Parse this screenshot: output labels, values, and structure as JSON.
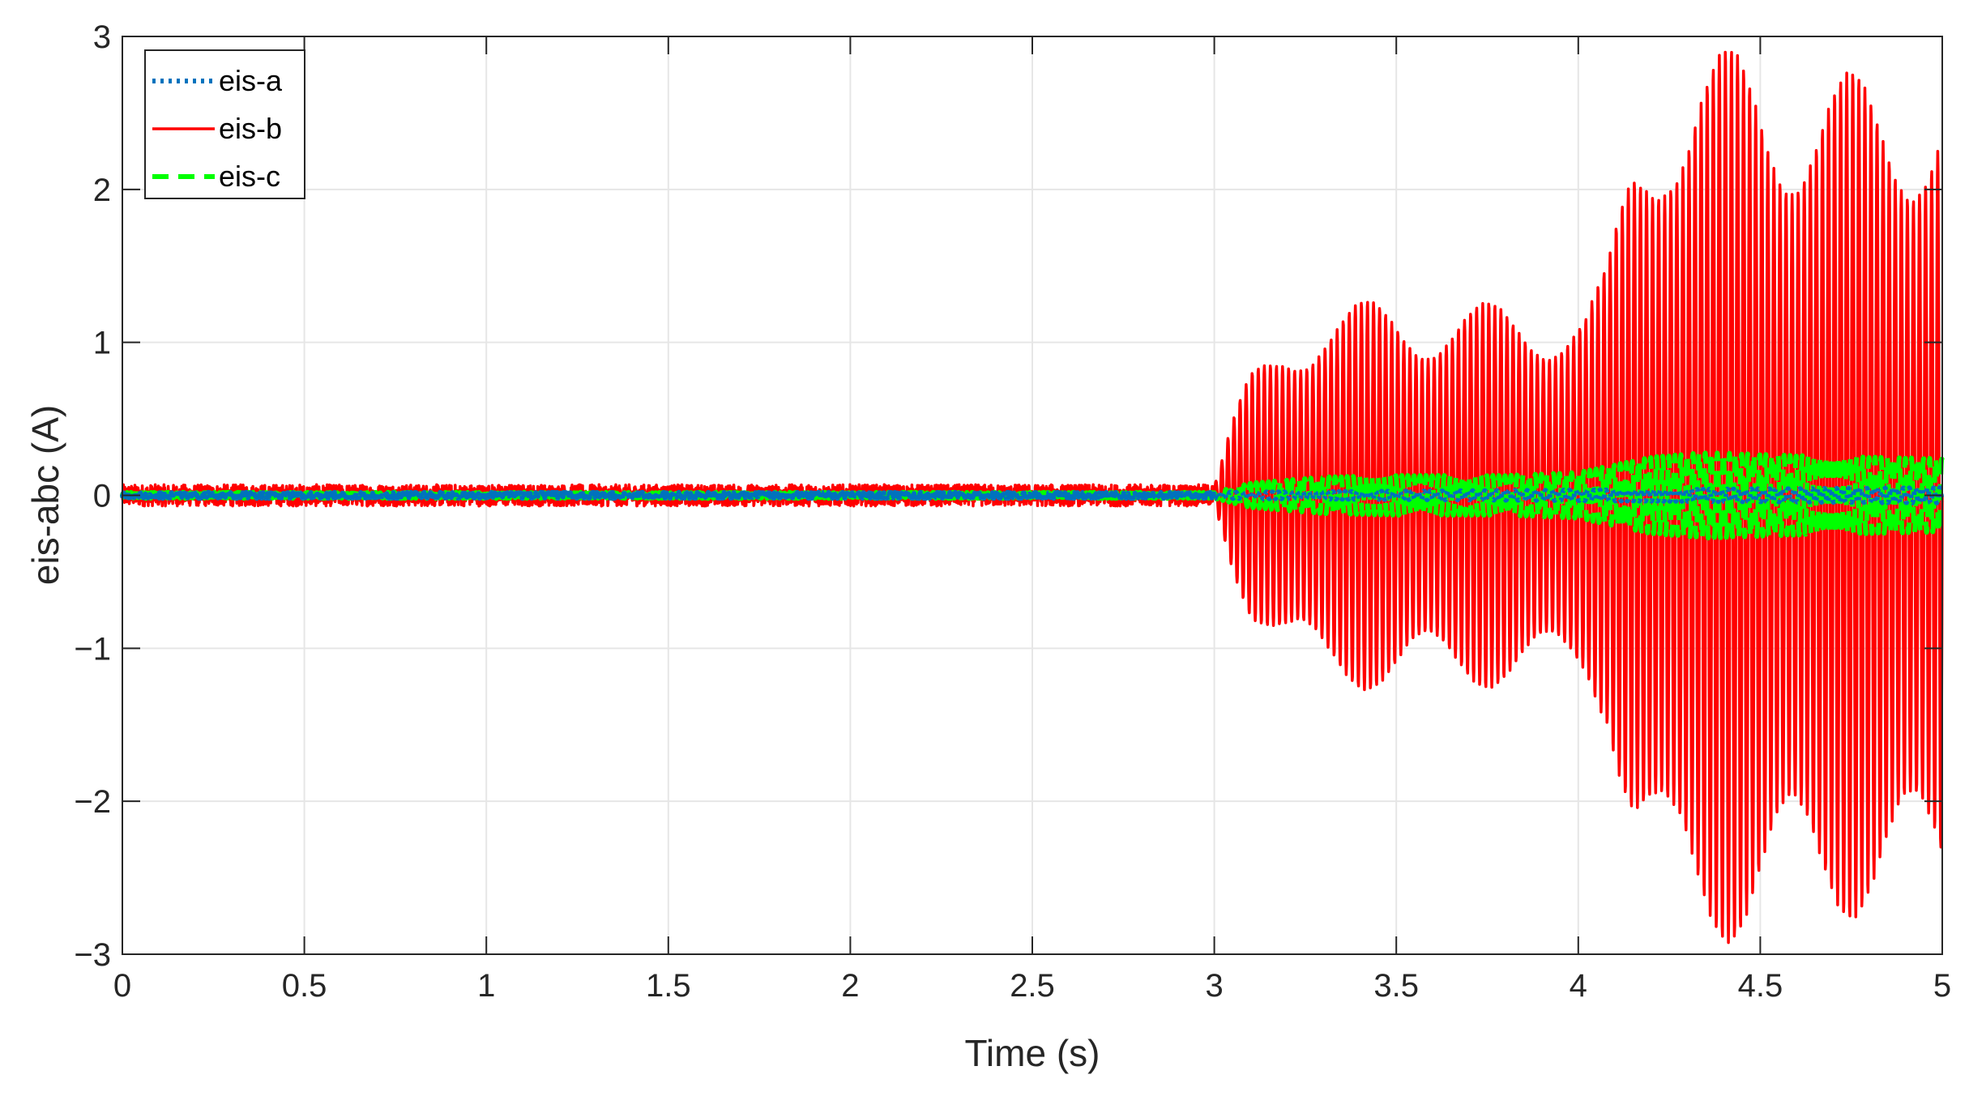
{
  "chart_data": {
    "type": "line",
    "xlabel": "Time (s)",
    "ylabel": "eis-abc (A)",
    "xlim": [
      0,
      5
    ],
    "ylim": [
      -3,
      3
    ],
    "xticks": [
      0,
      0.5,
      1,
      1.5,
      2,
      2.5,
      3,
      3.5,
      4,
      4.5,
      5
    ],
    "xtick_labels": [
      "0",
      "0.5",
      "1",
      "1.5",
      "2",
      "2.5",
      "3",
      "3.5",
      "4",
      "4.5",
      "5"
    ],
    "yticks": [
      -3,
      -2,
      -1,
      0,
      1,
      2,
      3
    ],
    "ytick_labels": [
      "−3",
      "−2",
      "−1",
      "0",
      "1",
      "2",
      "3"
    ],
    "grid": true,
    "legend": "top-left",
    "series": [
      {
        "name": "eis-a",
        "color": "#0072BD",
        "style": "dotted",
        "envelope": {
          "t": [
            0,
            3.0,
            5.0
          ],
          "amp": [
            0.02,
            0.02,
            0.05
          ]
        }
      },
      {
        "name": "eis-b",
        "color": "#FF0000",
        "style": "solid",
        "envelope": {
          "t": [
            0,
            3.0,
            3.05,
            3.1,
            3.2,
            3.3,
            3.4,
            3.5,
            3.6,
            3.7,
            3.8,
            3.9,
            4.02,
            4.08,
            4.15,
            4.25,
            4.33,
            4.45,
            4.6,
            4.8,
            5.0
          ],
          "amp": [
            0.07,
            0.07,
            0.5,
            0.8,
            1.1,
            1.25,
            1.27,
            1.28,
            1.27,
            1.26,
            1.26,
            1.27,
            1.27,
            1.5,
            2.3,
            2.85,
            2.98,
            2.9,
            2.8,
            2.76,
            2.76
          ]
        }
      },
      {
        "name": "eis-c",
        "color": "#00FF00",
        "style": "dashed",
        "envelope": {
          "t": [
            0,
            3.0,
            3.1,
            3.3,
            3.5,
            3.8,
            4.0,
            4.2,
            4.35,
            4.6,
            5.0
          ],
          "amp": [
            0.02,
            0.02,
            0.08,
            0.12,
            0.13,
            0.13,
            0.15,
            0.25,
            0.28,
            0.26,
            0.24
          ]
        }
      }
    ]
  }
}
